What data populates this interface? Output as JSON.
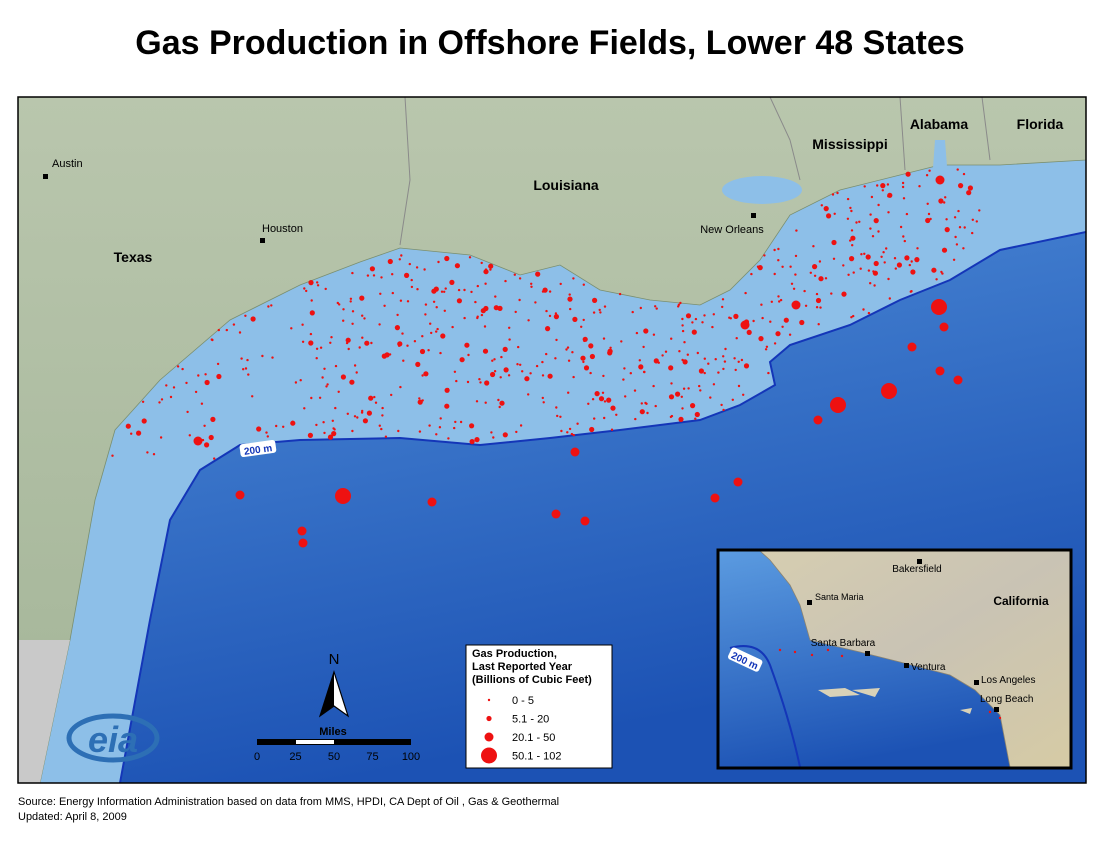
{
  "title": "Gas Production in Offshore Fields, Lower 48 States",
  "map": {
    "states": [
      "Texas",
      "Louisiana",
      "Mississippi",
      "Alabama",
      "Florida"
    ],
    "cities": [
      "Austin",
      "Houston",
      "New Orleans"
    ],
    "contour_label": "200 m"
  },
  "north": "N",
  "scale": {
    "unit": "Miles",
    "ticks": [
      0,
      25,
      50,
      75,
      100
    ]
  },
  "logo": "eia",
  "legend": {
    "title": [
      "Gas Production,",
      "Last Reported Year",
      "(Billions of Cubic Feet)"
    ],
    "classes": [
      "0 - 5",
      "5.1 - 20",
      "20.1 - 50",
      "50.1 - 102"
    ]
  },
  "inset": {
    "state": "California",
    "cities": [
      "Bakersfield",
      "Santa Maria",
      "Santa Barbara",
      "Ventura",
      "Los Angeles",
      "Long Beach"
    ],
    "contour_label": "200 m"
  },
  "footer": {
    "source": "Source: Energy Information Administration based on data from MMS, HPDI, CA Dept of Oil , Gas & Geothermal",
    "updated": "Updated: April 8, 2009"
  }
}
